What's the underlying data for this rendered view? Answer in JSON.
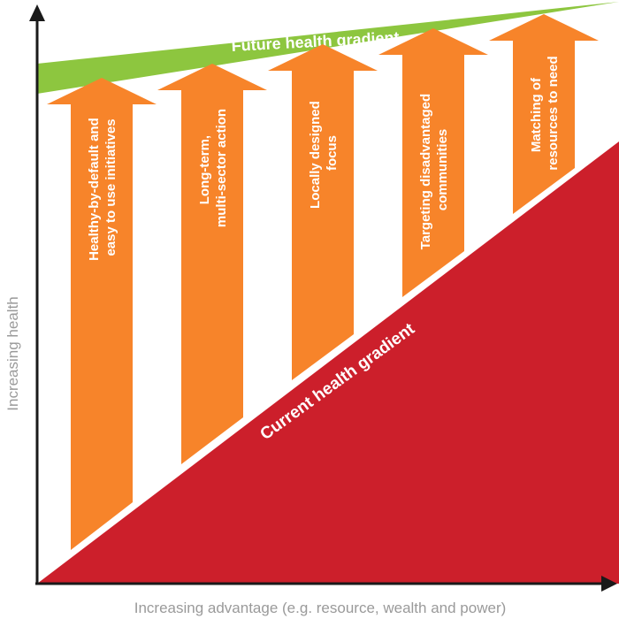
{
  "diagram": {
    "future_gradient_label": "Future health gradient",
    "current_gradient_label": "Current health gradient",
    "y_axis_label": "Increasing health",
    "x_axis_label": "Increasing advantage (e.g. resource, wealth and power)",
    "arrows": [
      {
        "lines": [
          "Healthy-by-default and",
          "easy to use initiatives"
        ]
      },
      {
        "lines": [
          "Long-term,",
          "multi-sector action"
        ]
      },
      {
        "lines": [
          "Locally designed",
          "focus"
        ]
      },
      {
        "lines": [
          "Targeting disadvantaged",
          "communities"
        ]
      },
      {
        "lines": [
          "Matching of",
          "resources to need"
        ]
      }
    ]
  },
  "colors": {
    "future_band": "#8dc63f",
    "current_band": "#cc1f2b",
    "arrow": "#f7842a",
    "axis": "#1a1a1a",
    "axis_text": "#9a9a9a",
    "label_text": "#ffffff"
  }
}
